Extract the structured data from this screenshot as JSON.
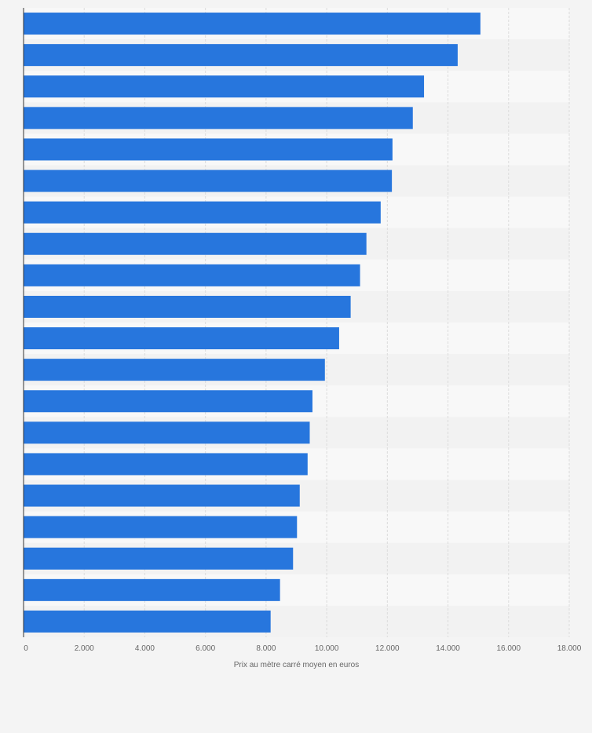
{
  "chart_data": {
    "type": "bar",
    "orientation": "horizontal",
    "values": [
      15070,
      14320,
      13210,
      12840,
      12170,
      12150,
      11780,
      11310,
      11100,
      10790,
      10410,
      9940,
      9530,
      9440,
      9370,
      9110,
      9020,
      8890,
      8460,
      8150
    ],
    "xlabel": "Prix au mètre carré moyen en euros",
    "xlim": [
      0,
      18000
    ],
    "x_ticks": [
      0,
      2000,
      4000,
      6000,
      8000,
      10000,
      12000,
      14000,
      16000,
      18000
    ],
    "x_tick_labels": [
      "0",
      "2.000",
      "4.000",
      "6.000",
      "8.000",
      "10.000",
      "12.000",
      "14.000",
      "16.000",
      "18.000"
    ],
    "grid": true,
    "colors": {
      "bar": "#2776dd",
      "band_light": "#f8f8f8",
      "band_dark": "#f2f2f2",
      "grid": "#dcdcdc",
      "axis": "#333333",
      "tick_text": "#666666"
    }
  }
}
